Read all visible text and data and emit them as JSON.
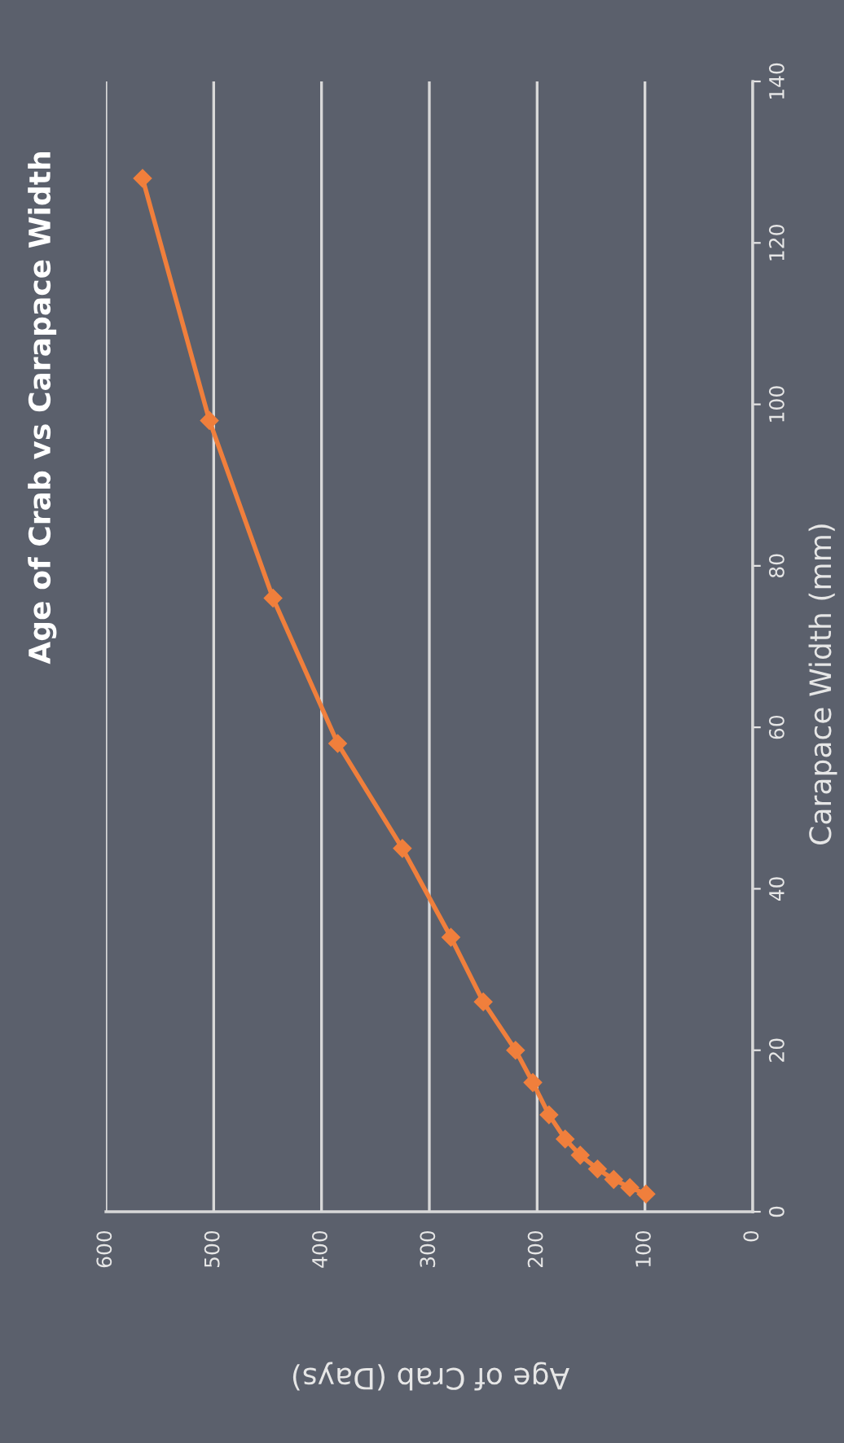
{
  "chart_data": {
    "type": "line",
    "title": "Age of Crab vs Carapace Width",
    "xlabel": "Age of Crab (Days)",
    "ylabel": "Carapace Width (mm)",
    "x": [
      566,
      504,
      445,
      385,
      325,
      280,
      250,
      220,
      204,
      189,
      174,
      160,
      144,
      129,
      114,
      99
    ],
    "series": [
      {
        "color": "#f07f3c",
        "values": [
          128,
          98,
          76,
          58,
          45,
          34,
          26,
          20,
          16,
          12,
          9,
          7,
          5.3,
          4,
          3,
          2.2
        ]
      }
    ],
    "xlim": [
      600,
      0
    ],
    "xticks": [
      600,
      500,
      400,
      300,
      200,
      100,
      0
    ],
    "ylim": [
      0,
      140
    ],
    "yticks": [
      0,
      20,
      40,
      60,
      80,
      100,
      120,
      140
    ],
    "grid": "x",
    "marker": "diamond",
    "line_style": "solid",
    "legend": false
  }
}
